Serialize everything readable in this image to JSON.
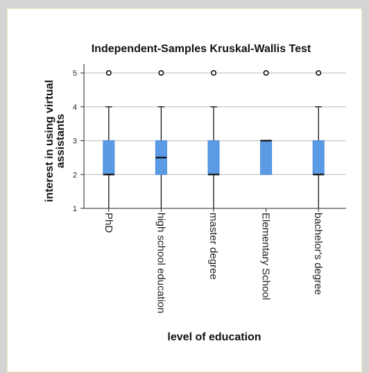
{
  "chart_data": {
    "type": "box",
    "title": "Independent-Samples Kruskal-Wallis Test",
    "xlabel": "level of education",
    "ylabel": "interest in using virtual assistants",
    "ylabel_lines": [
      "interest in using virtual",
      "assistants"
    ],
    "ylim": [
      1,
      5
    ],
    "yticks": [
      "1",
      "2",
      "3",
      "4",
      "5"
    ],
    "grid": true,
    "categories": [
      "PhD",
      "high school education",
      "master degree",
      "Elementary School",
      "bachelor's degree"
    ],
    "boxes": [
      {
        "category": "PhD",
        "whisker_low": 1,
        "q1": 2,
        "median": 2,
        "q3": 3,
        "whisker_high": 4,
        "outliers": [
          5
        ]
      },
      {
        "category": "high school education",
        "whisker_low": 1,
        "q1": 2,
        "median": 2.5,
        "q3": 3,
        "whisker_high": 4,
        "outliers": [
          5
        ]
      },
      {
        "category": "master degree",
        "whisker_low": 1,
        "q1": 2,
        "median": 2,
        "q3": 3,
        "whisker_high": 4,
        "outliers": [
          5
        ]
      },
      {
        "category": "Elementary School",
        "whisker_low": 2,
        "q1": 2,
        "median": 3,
        "q3": 3,
        "whisker_high": 3,
        "outliers": [
          5
        ]
      },
      {
        "category": "bachelor's degree",
        "whisker_low": 1,
        "q1": 2,
        "median": 2,
        "q3": 3,
        "whisker_high": 4,
        "outliers": [
          5
        ]
      }
    ],
    "colors": {
      "box_fill": "#5b9be6",
      "box_edge": "#4a8ad8",
      "median": "#111111",
      "grid": "#c8c8c8",
      "axis": "#222222"
    }
  }
}
